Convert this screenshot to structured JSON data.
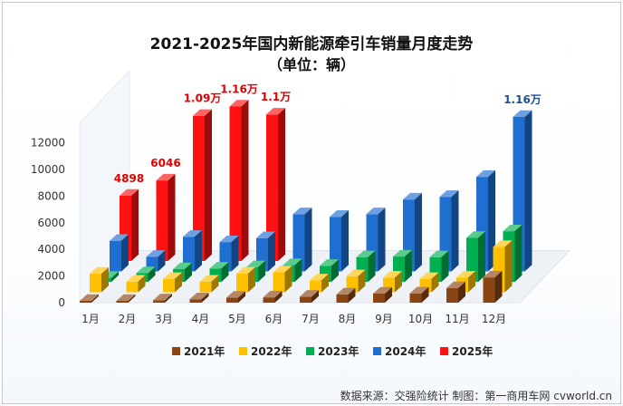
{
  "chart_data": {
    "type": "bar",
    "title": "2021-2025年国内新能源牵引车销量月度走势",
    "subtitle": "（单位：辆）",
    "categories": [
      "1月",
      "2月",
      "3月",
      "4月",
      "5月",
      "6月",
      "7月",
      "8月",
      "9月",
      "10月",
      "11月",
      "12月"
    ],
    "series": [
      {
        "name": "2021年",
        "color": "#8B4513",
        "values": [
          90,
          120,
          180,
          260,
          380,
          400,
          450,
          620,
          680,
          700,
          1100,
          1900
        ]
      },
      {
        "name": "2022年",
        "color": "#FFC000",
        "values": [
          1400,
          800,
          1000,
          800,
          1400,
          1500,
          900,
          1200,
          1100,
          1000,
          1100,
          3400
        ]
      },
      {
        "name": "2023年",
        "color": "#00B050",
        "values": [
          300,
          650,
          950,
          1000,
          1100,
          1250,
          1200,
          1850,
          1900,
          1850,
          3300,
          3800
        ]
      },
      {
        "name": "2024年",
        "color": "#1F6FD1",
        "values": [
          2300,
          1100,
          2600,
          2200,
          2500,
          4300,
          4100,
          4300,
          5400,
          5600,
          7100,
          11600
        ]
      },
      {
        "name": "2025年",
        "color": "#FF1111",
        "values": [
          4898,
          6046,
          10900,
          11600,
          11000,
          null,
          null,
          null,
          null,
          null,
          null,
          null
        ]
      }
    ],
    "data_labels": [
      {
        "series": "2025年",
        "index": 0,
        "text": "4898"
      },
      {
        "series": "2025年",
        "index": 1,
        "text": "6046"
      },
      {
        "series": "2025年",
        "index": 2,
        "text": "1.09万"
      },
      {
        "series": "2025年",
        "index": 3,
        "text": "1.16万"
      },
      {
        "series": "2025年",
        "index": 4,
        "text": "1.1万"
      },
      {
        "series": "2024年",
        "index": 11,
        "text": "1.16万"
      }
    ],
    "yticks": [
      0,
      2000,
      4000,
      6000,
      8000,
      10000,
      12000
    ],
    "ylim": [
      0,
      12000
    ],
    "legend_position": "bottom",
    "grid": false
  },
  "source_note": "数据来源：交强险统计  制图：第一商用车网 cvworld.cn"
}
